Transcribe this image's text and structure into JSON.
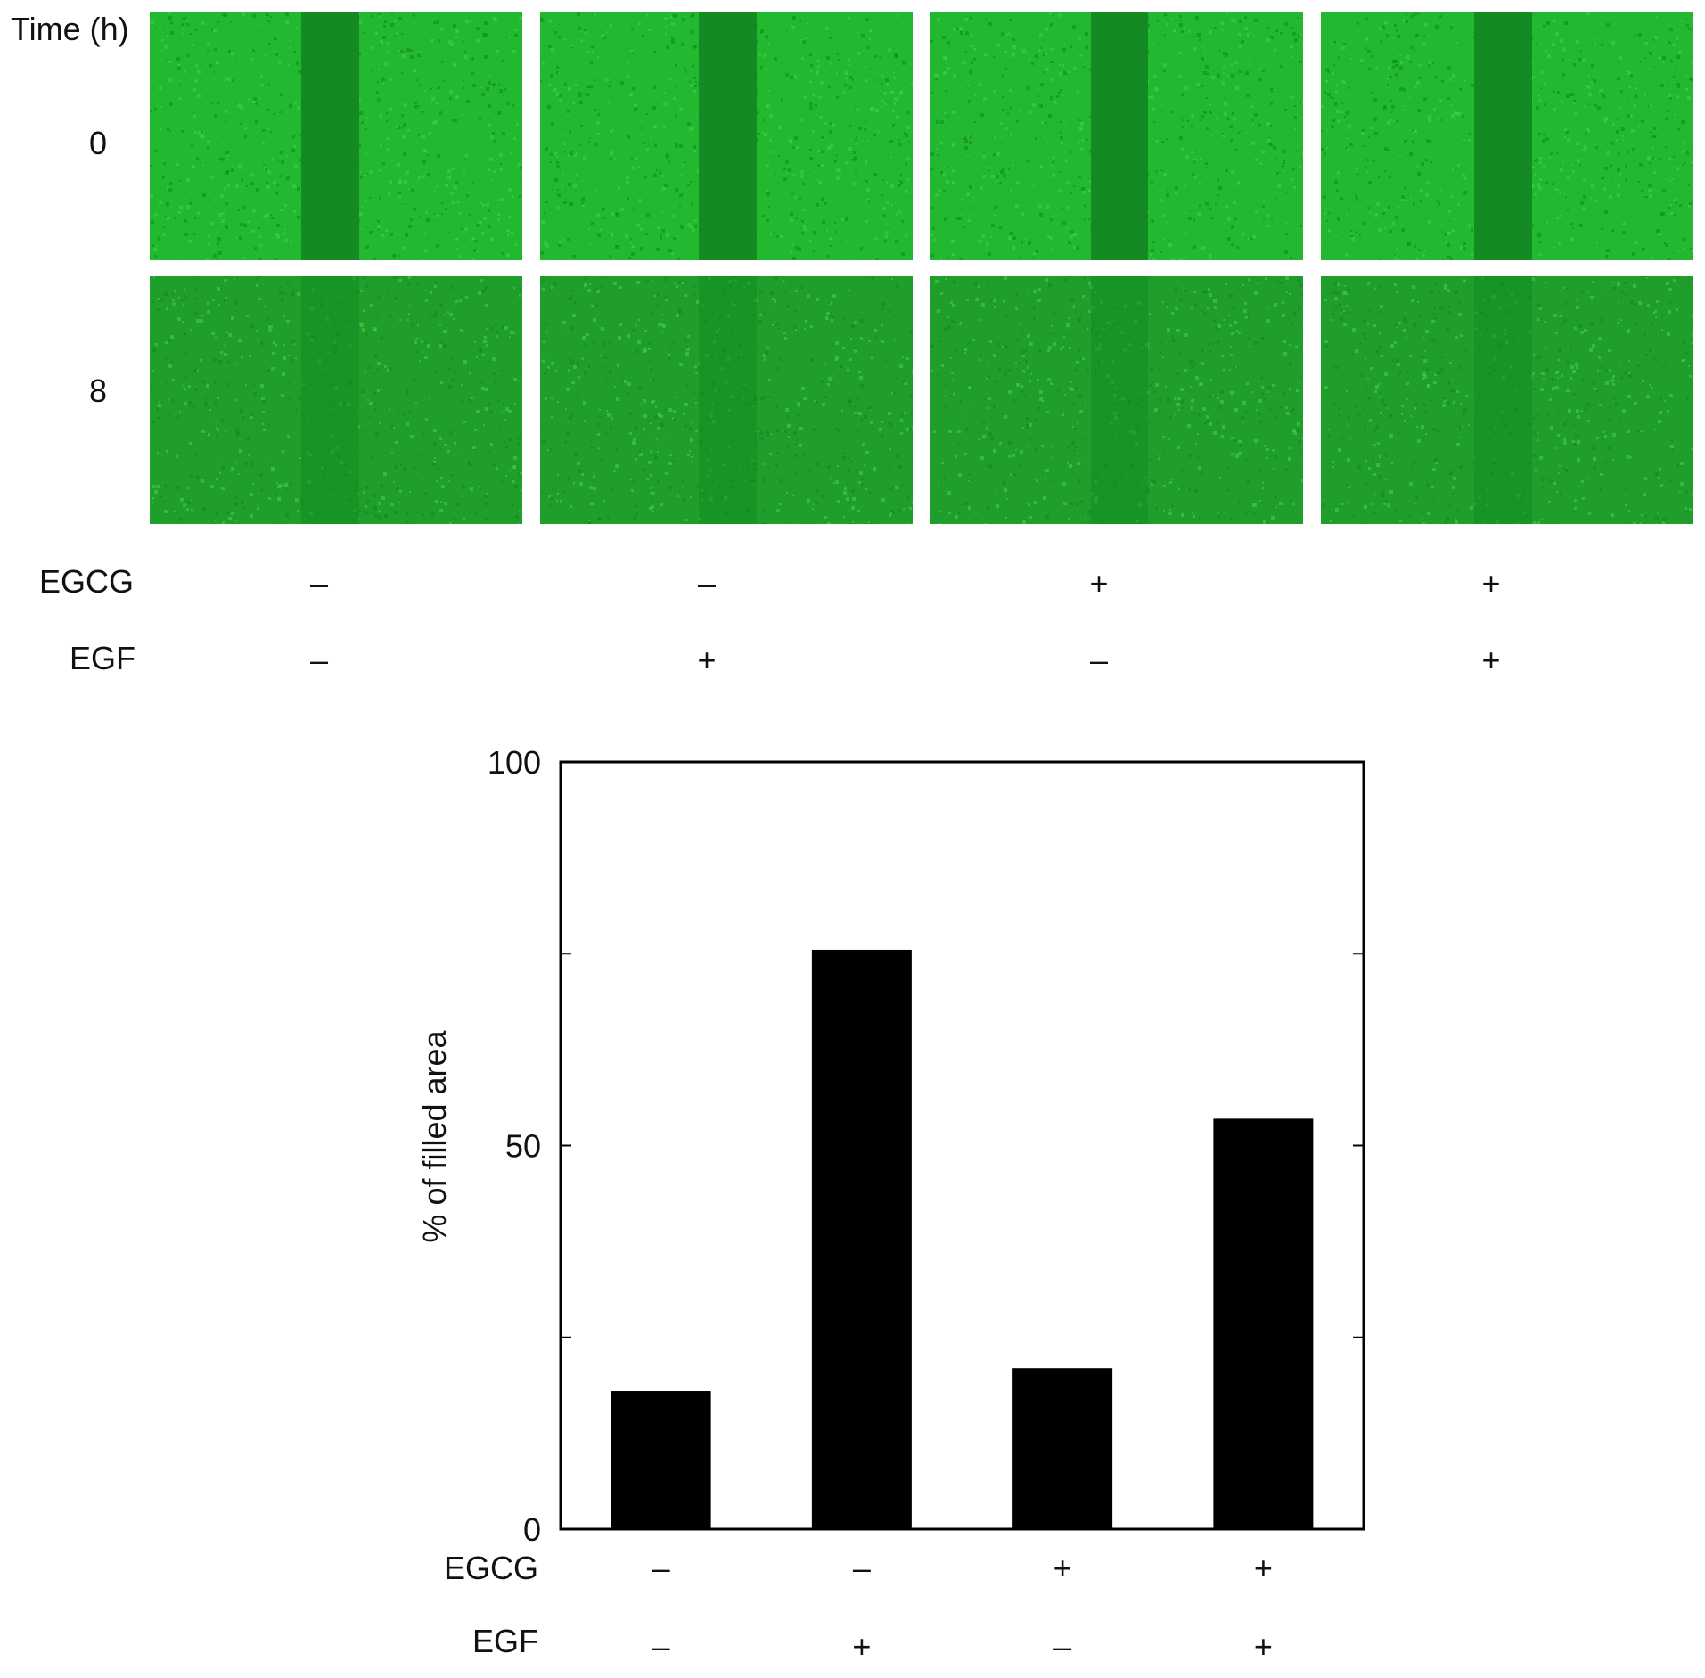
{
  "micrographs": {
    "time_label": "Time (h)",
    "rows": [
      {
        "time": "0",
        "wound": "open"
      },
      {
        "time": "8",
        "wound": "partially-closed"
      }
    ],
    "columns": 4,
    "color_fluorescence": "#22b830",
    "color_wound": "#138a22"
  },
  "conditions": {
    "egcg_label": "EGCG",
    "egf_label": "EGF",
    "egcg": [
      "–",
      "–",
      "+",
      "+"
    ],
    "egf": [
      "–",
      "+",
      "–",
      "+"
    ]
  },
  "chart_data": {
    "type": "bar",
    "categories": [
      "EGCG– EGF–",
      "EGCG– EGF+",
      "EGCG+ EGF–",
      "EGCG+ EGF+"
    ],
    "values": [
      18,
      75.5,
      21,
      53.5
    ],
    "title": "",
    "xlabel": "",
    "ylabel": "% of filled area",
    "ylim": [
      0,
      100
    ],
    "yticks": [
      0,
      25,
      50,
      75,
      100
    ],
    "ytick_labels": [
      "0",
      "50",
      "100"
    ],
    "grid": false,
    "bar_color": "#000000",
    "egcg_label": "EGCG",
    "egf_label": "EGF",
    "egcg": [
      "–",
      "–",
      "+",
      "+"
    ],
    "egf": [
      "–",
      "+",
      "–",
      "+"
    ]
  }
}
